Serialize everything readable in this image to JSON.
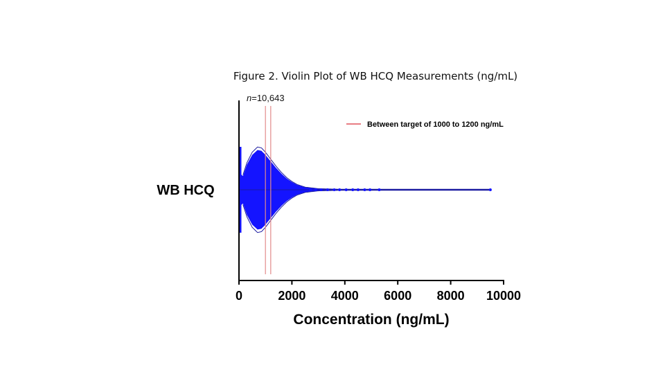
{
  "chart_data": {
    "type": "violin",
    "title": "Figure 2. Violin Plot of WB HCQ Measurements (ng/mL)",
    "n_prefix": "n",
    "n_value": "=10,643",
    "category": "WB HCQ",
    "xlabel": "Concentration (ng/mL)",
    "xlim": [
      0,
      10000
    ],
    "xticks": [
      "0",
      "2000",
      "4000",
      "6000",
      "8000",
      "10000"
    ],
    "xtick_values": [
      0,
      2000,
      4000,
      6000,
      8000,
      10000
    ],
    "reference_lines": [
      1000,
      1200
    ],
    "legend": [
      {
        "label": "Between target of 1000 to 1200 ng/mL",
        "color": "#e0505a"
      }
    ],
    "violin_profile": [
      {
        "x": 0,
        "halfwidth": 0.42
      },
      {
        "x": 150,
        "halfwidth": 0.34
      },
      {
        "x": 300,
        "halfwidth": 0.62
      },
      {
        "x": 500,
        "halfwidth": 0.86
      },
      {
        "x": 700,
        "halfwidth": 0.98
      },
      {
        "x": 850,
        "halfwidth": 0.96
      },
      {
        "x": 1000,
        "halfwidth": 0.86
      },
      {
        "x": 1200,
        "halfwidth": 0.7
      },
      {
        "x": 1400,
        "halfwidth": 0.54
      },
      {
        "x": 1600,
        "halfwidth": 0.4
      },
      {
        "x": 1800,
        "halfwidth": 0.28
      },
      {
        "x": 2000,
        "halfwidth": 0.19
      },
      {
        "x": 2200,
        "halfwidth": 0.12
      },
      {
        "x": 2500,
        "halfwidth": 0.06
      },
      {
        "x": 3000,
        "halfwidth": 0.025
      },
      {
        "x": 4000,
        "halfwidth": 0.008
      },
      {
        "x": 6000,
        "halfwidth": 0.004
      },
      {
        "x": 9500,
        "halfwidth": 0.003
      }
    ],
    "outliers": [
      2700,
      2900,
      3100,
      3350,
      3600,
      3800,
      4050,
      4300,
      4500,
      4750,
      4950,
      5300,
      9500
    ],
    "colors": {
      "points": "#1414ff",
      "outline": "#1a1aa0",
      "reference": "#e28a8a",
      "axis": "#000000"
    }
  }
}
